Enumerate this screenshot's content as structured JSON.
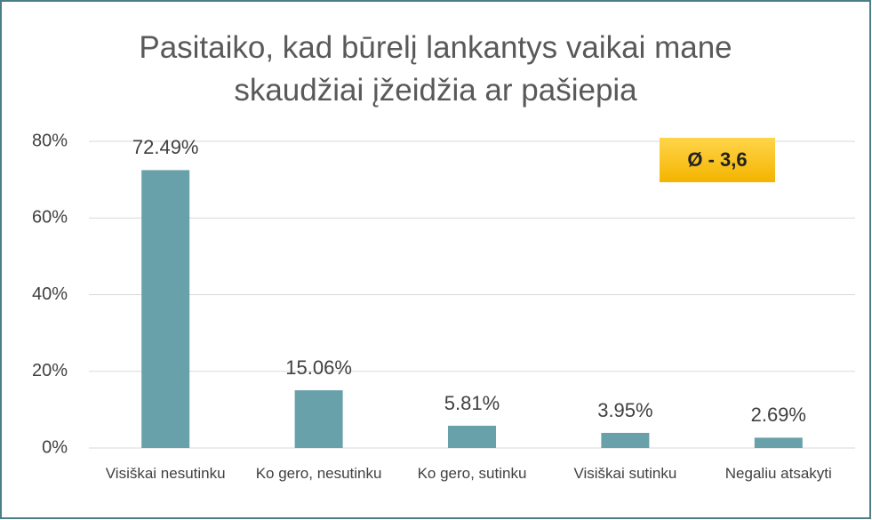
{
  "chart_data": {
    "type": "bar",
    "title": "Pasitaiko, kad būrelį lankantys vaikai mane skaudžiai įžeidžia ar pašiepia",
    "categories": [
      "Visiškai nesutinku",
      "Ko gero, nesutinku",
      "Ko gero, sutinku",
      "Visiškai sutinku",
      "Negaliu atsakyti"
    ],
    "values": [
      72.49,
      15.06,
      5.81,
      3.95,
      2.69
    ],
    "value_labels": [
      "72.49%",
      "15.06%",
      "5.81%",
      "3.95%",
      "2.69%"
    ],
    "color": "#68a1a9",
    "ylim": [
      0,
      80
    ],
    "yticks": [
      {
        "value": 0,
        "label": "0%"
      },
      {
        "value": 20,
        "label": "20%"
      },
      {
        "value": 40,
        "label": "40%"
      },
      {
        "value": 60,
        "label": "60%"
      },
      {
        "value": 80,
        "label": "80%"
      }
    ],
    "grid": true,
    "annotation": "Ø - 3,6"
  }
}
